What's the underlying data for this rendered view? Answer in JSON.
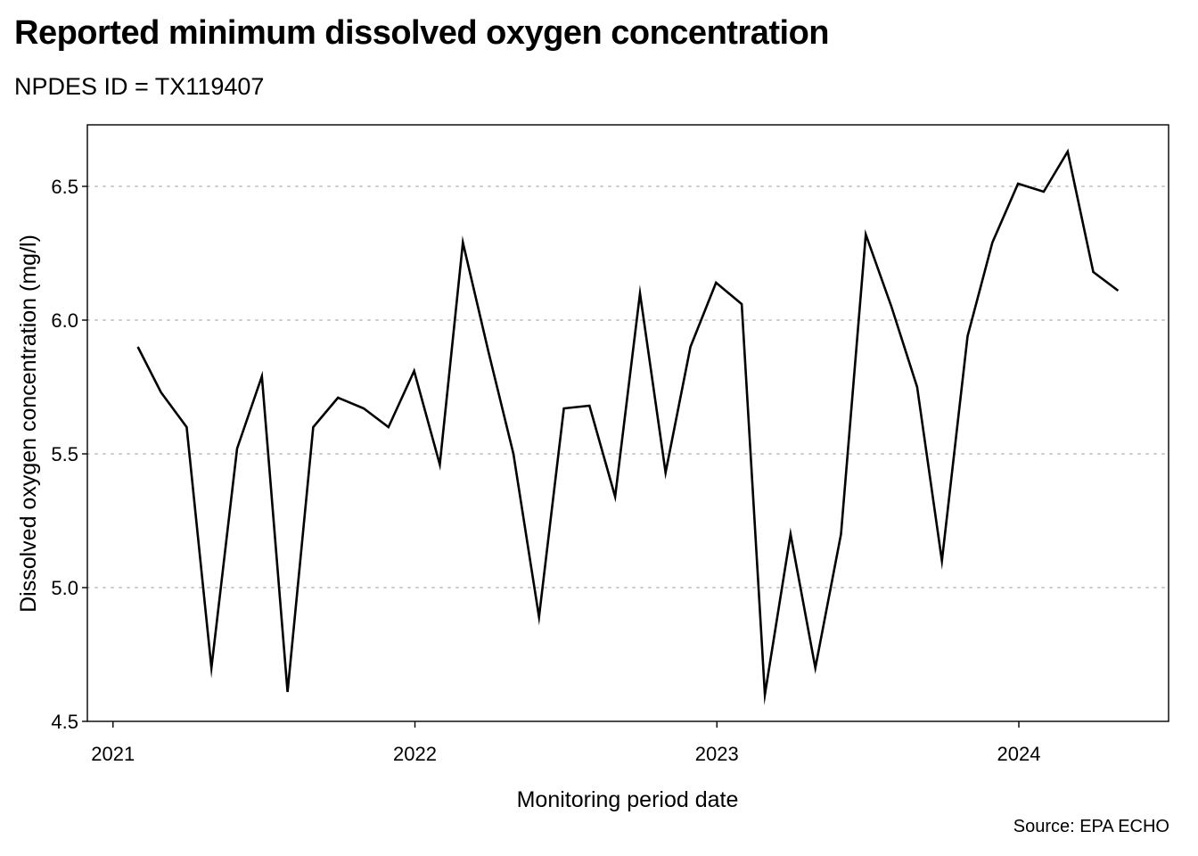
{
  "chart_data": {
    "type": "line",
    "title": "Reported minimum dissolved oxygen concentration",
    "subtitle": "NPDES ID = TX119407",
    "xlabel": "Monitoring period date",
    "ylabel": "Dissolved oxygen concentration (mg/l)",
    "source": "Source: EPA ECHO",
    "xlim": [
      "2020-12-01",
      "2024-06-30"
    ],
    "ylim": [
      4.5,
      6.73
    ],
    "x_ticks": [
      "2021",
      "2022",
      "2023",
      "2024"
    ],
    "y_ticks": [
      "4.5",
      "5.0",
      "5.5",
      "6.0",
      "6.5"
    ],
    "grid": "horizontal dotted",
    "legend": "none",
    "line_color": "#000000",
    "grid_color": "#cccccc",
    "series": [
      {
        "x": [
          "2021-01-31",
          "2021-02-28",
          "2021-03-31",
          "2021-04-30",
          "2021-05-31",
          "2021-06-30",
          "2021-07-31",
          "2021-08-31",
          "2021-09-30",
          "2021-10-31",
          "2021-11-30",
          "2021-12-31",
          "2022-01-31",
          "2022-02-28",
          "2022-03-31",
          "2022-04-30",
          "2022-05-31",
          "2022-06-30",
          "2022-07-31",
          "2022-08-31",
          "2022-09-30",
          "2022-10-31",
          "2022-11-30",
          "2022-12-31",
          "2023-01-31",
          "2023-02-28",
          "2023-03-31",
          "2023-04-30",
          "2023-05-31",
          "2023-06-30",
          "2023-07-31",
          "2023-08-31",
          "2023-09-30",
          "2023-10-31",
          "2023-11-30",
          "2023-12-31",
          "2024-01-31",
          "2024-02-29",
          "2024-03-31",
          "2024-04-30"
        ],
        "values": [
          5.9,
          5.73,
          5.6,
          4.7,
          5.52,
          5.79,
          4.61,
          5.6,
          5.71,
          5.67,
          5.6,
          5.81,
          5.46,
          6.29,
          5.88,
          5.5,
          4.89,
          5.67,
          5.68,
          5.34,
          6.1,
          5.43,
          5.9,
          6.14,
          6.06,
          4.6,
          5.2,
          4.7,
          5.2,
          6.32,
          6.05,
          5.75,
          5.1,
          5.94,
          6.29,
          6.51,
          6.48,
          6.63,
          6.18,
          6.11
        ]
      }
    ]
  }
}
